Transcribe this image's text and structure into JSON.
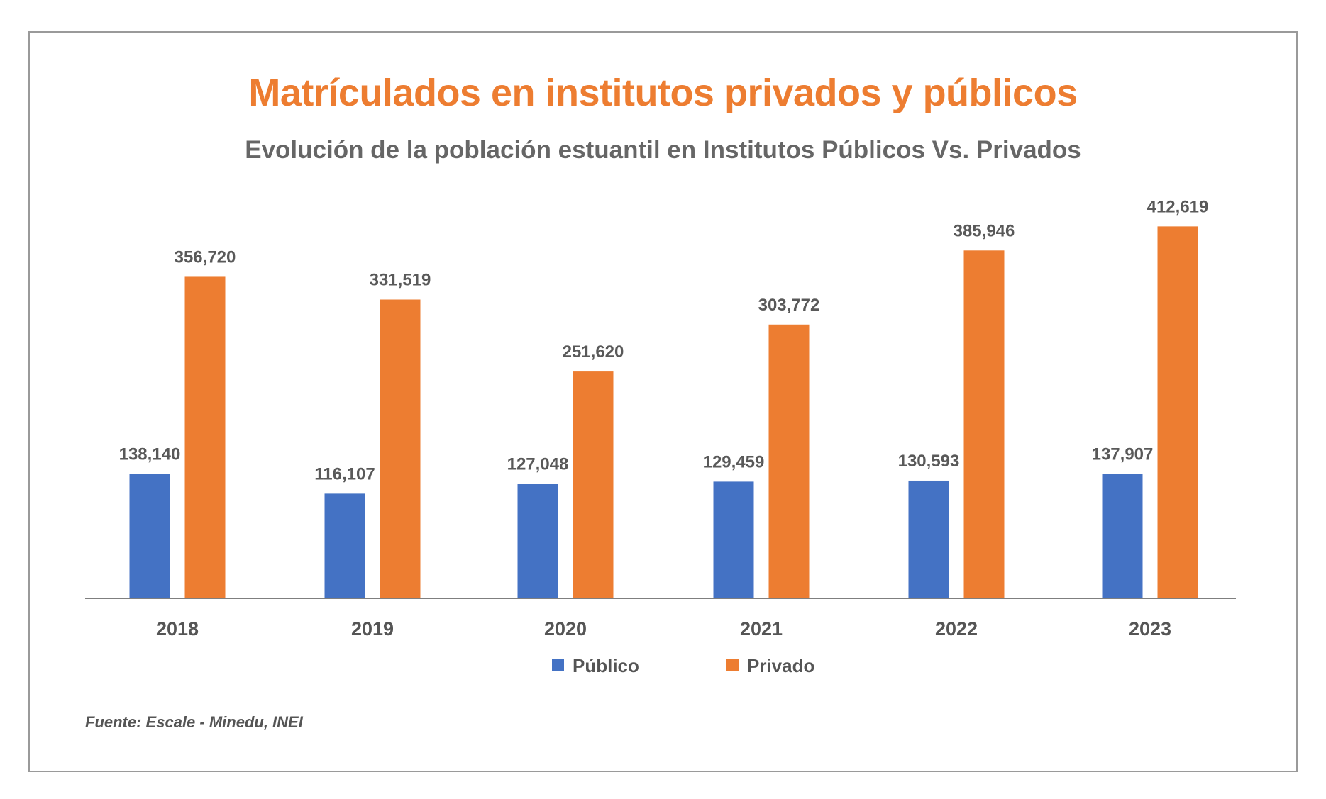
{
  "title": "Matrículados en institutos privados y públicos",
  "subtitle": "Evolución de la población estuantil en Institutos Públicos Vs.  Privados",
  "source": "Fuente: Escale - Minedu, INEI",
  "colors": {
    "publico": "#4472c4",
    "privado": "#ed7d31",
    "title": "#ed7d31",
    "axis": "#7f7f7f"
  },
  "chart_data": {
    "type": "bar",
    "title": "Matrículados en institutos privados y públicos",
    "subtitle": "Evolución de la población estuantil en Institutos Públicos Vs.  Privados",
    "xlabel": "",
    "ylabel": "",
    "ylim": [
      0,
      420000
    ],
    "grid": false,
    "legend": "bottom",
    "categories": [
      "2018",
      "2019",
      "2020",
      "2021",
      "2022",
      "2023"
    ],
    "series": [
      {
        "name": "Público",
        "color": "#4472c4",
        "values": [
          138140,
          116107,
          127048,
          129459,
          130593,
          137907
        ],
        "labels": [
          "138,140",
          "116,107",
          "127,048",
          "129,459",
          "130,593",
          "137,907"
        ]
      },
      {
        "name": "Privado",
        "color": "#ed7d31",
        "values": [
          356720,
          331519,
          251620,
          303772,
          385946,
          412619
        ],
        "labels": [
          "356,720",
          "331,519",
          "251,620",
          "303,772",
          "385,946",
          "412,619"
        ]
      }
    ]
  }
}
